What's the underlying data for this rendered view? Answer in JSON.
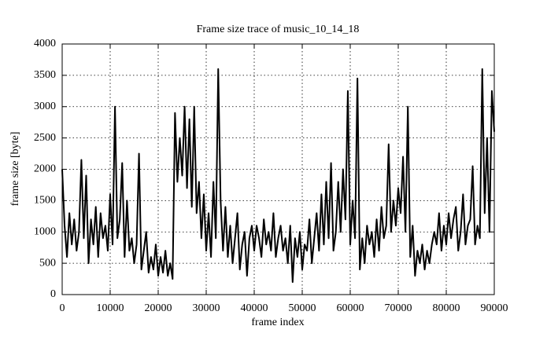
{
  "chart_data": {
    "type": "line",
    "title": "Frame size trace of music_10_14_18",
    "x_label": "frame index",
    "y_label": "frame size [byte]",
    "x": [
      0,
      500,
      1000,
      1500,
      2000,
      2500,
      3000,
      3500,
      4000,
      4500,
      5000,
      5500,
      6000,
      6500,
      7000,
      7500,
      8000,
      8500,
      9000,
      9500,
      10000,
      10500,
      11000,
      11500,
      12000,
      12500,
      13000,
      13500,
      14000,
      14500,
      15000,
      15500,
      16000,
      16500,
      17000,
      17500,
      18000,
      18500,
      19000,
      19500,
      20000,
      20500,
      21000,
      21500,
      22000,
      22500,
      23000,
      23500,
      24000,
      24500,
      25000,
      25500,
      26000,
      26500,
      27000,
      27500,
      28000,
      28500,
      29000,
      29500,
      30000,
      30500,
      31000,
      31500,
      32000,
      32500,
      33000,
      33500,
      34000,
      34500,
      35000,
      35500,
      36000,
      36500,
      37000,
      37500,
      38000,
      38500,
      39000,
      39500,
      40000,
      40500,
      41000,
      41500,
      42000,
      42500,
      43000,
      43500,
      44000,
      44500,
      45000,
      45500,
      46000,
      46500,
      47000,
      47500,
      48000,
      48500,
      49000,
      49500,
      50000,
      50500,
      51000,
      51500,
      52000,
      52500,
      53000,
      53500,
      54000,
      54500,
      55000,
      55500,
      56000,
      56500,
      57000,
      57500,
      58000,
      58500,
      59000,
      59500,
      60000,
      60500,
      61000,
      61500,
      62000,
      62500,
      63000,
      63500,
      64000,
      64500,
      65000,
      65500,
      66000,
      66500,
      67000,
      67500,
      68000,
      68500,
      69000,
      69500,
      70000,
      70500,
      71000,
      71500,
      72000,
      72500,
      73000,
      73500,
      74000,
      74500,
      75000,
      75500,
      76000,
      76500,
      77000,
      77500,
      78000,
      78500,
      79000,
      79500,
      80000,
      80500,
      81000,
      81500,
      82000,
      82500,
      83000,
      83500,
      84000,
      84500,
      85000,
      85500,
      86000,
      86500,
      87000,
      87500,
      88000,
      88500,
      89000,
      89500,
      90000
    ],
    "series": [
      {
        "name": "frame size",
        "color": "#000000",
        "values": [
          2000,
          1100,
          600,
          1300,
          800,
          1200,
          700,
          1000,
          2150,
          900,
          1900,
          500,
          1200,
          800,
          1400,
          600,
          1300,
          900,
          1100,
          700,
          1600,
          800,
          3000,
          900,
          1200,
          2100,
          600,
          1500,
          700,
          900,
          500,
          800,
          2250,
          400,
          700,
          1000,
          350,
          600,
          400,
          800,
          300,
          600,
          350,
          700,
          300,
          500,
          250,
          2900,
          1800,
          2500,
          1900,
          3000,
          1700,
          2800,
          1400,
          3000,
          1300,
          1800,
          900,
          1600,
          700,
          1300,
          600,
          1800,
          900,
          3600,
          1500,
          700,
          1400,
          600,
          1100,
          500,
          900,
          1300,
          400,
          800,
          1000,
          300,
          900,
          1100,
          700,
          1100,
          900,
          600,
          1200,
          800,
          1000,
          700,
          1300,
          600,
          900,
          1100,
          700,
          900,
          500,
          1100,
          200,
          900,
          600,
          1000,
          400,
          800,
          700,
          1200,
          500,
          900,
          1300,
          700,
          1600,
          800,
          1800,
          900,
          2100,
          700,
          1000,
          1800,
          1000,
          2000,
          1200,
          3250,
          800,
          1500,
          900,
          3450,
          400,
          900,
          500,
          1100,
          800,
          1000,
          600,
          1200,
          700,
          1400,
          900,
          1100,
          2400,
          1000,
          1500,
          1100,
          1700,
          1300,
          2200,
          1000,
          3000,
          600,
          1100,
          300,
          700,
          500,
          800,
          400,
          700,
          500,
          800,
          1000,
          800,
          1300,
          700,
          1100,
          800,
          1300,
          900,
          1200,
          1400,
          700,
          1000,
          1600,
          800,
          1100,
          1200,
          2050,
          800,
          1100,
          900,
          3600,
          1300,
          2500,
          1000,
          3250,
          2600
        ]
      }
    ],
    "xlim": [
      0,
      90000
    ],
    "ylim": [
      0,
      4000
    ],
    "xticks": [
      0,
      10000,
      20000,
      30000,
      40000,
      50000,
      60000,
      70000,
      80000,
      90000
    ],
    "yticks": [
      0,
      500,
      1000,
      1500,
      2000,
      2500,
      3000,
      3500,
      4000
    ],
    "grid": true
  }
}
